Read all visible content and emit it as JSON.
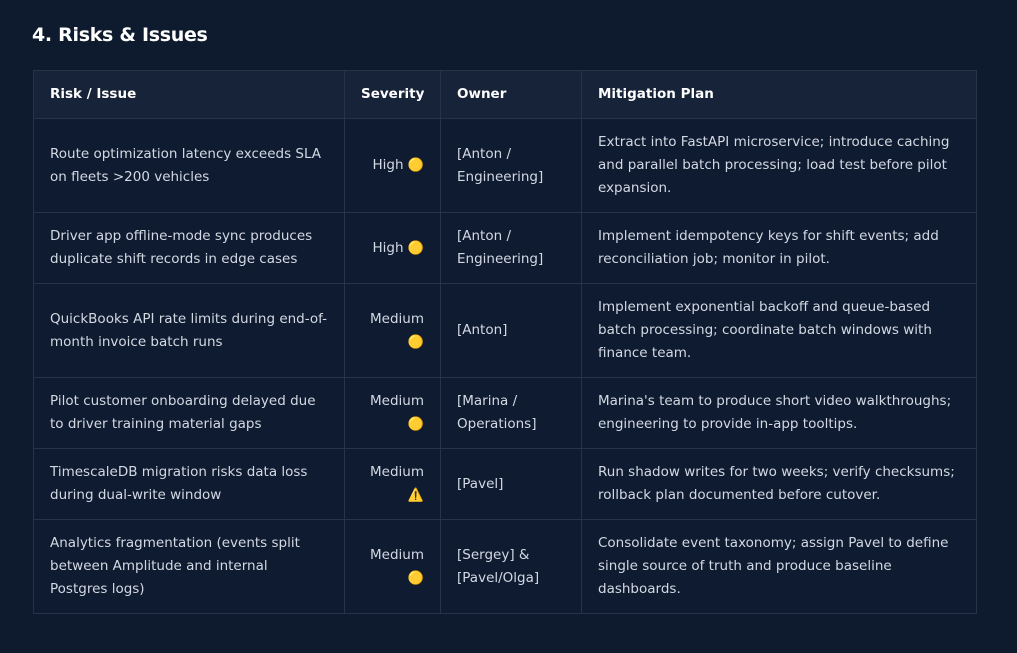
{
  "header": {
    "title": "4. Risks & Issues"
  },
  "table": {
    "columns": [
      "Risk / Issue",
      "Severity",
      "Owner",
      "Mitigation Plan"
    ],
    "rows": [
      {
        "risk": "Route optimization latency exceeds SLA on fleets >200 vehicles",
        "severity": "High",
        "icon": "🟡",
        "owner": "[Anton / Engineering]",
        "mitigation": "Extract into FastAPI microservice; introduce caching and parallel batch processing; load test before pilot expansion."
      },
      {
        "risk": "Driver app offline-mode sync produces duplicate shift records in edge cases",
        "severity": "High",
        "icon": "🟡",
        "owner": "[Anton / Engineering]",
        "mitigation": "Implement idempotency keys for shift events; add reconciliation job; monitor in pilot."
      },
      {
        "risk": "QuickBooks API rate limits during end-of-month invoice batch runs",
        "severity": "Medium",
        "icon": "🟡",
        "owner": "[Anton]",
        "mitigation": "Implement exponential backoff and queue-based batch processing; coordinate batch windows with finance team."
      },
      {
        "risk": "Pilot customer onboarding delayed due to driver training material gaps",
        "severity": "Medium",
        "icon": "🟡",
        "owner": "[Marina / Operations]",
        "mitigation": "Marina's team to produce short video walkthroughs; engineering to provide in-app tooltips."
      },
      {
        "risk": "TimescaleDB migration risks data loss during dual-write window",
        "severity": "Medium",
        "icon": "⚠️",
        "owner": "[Pavel]",
        "mitigation": "Run shadow writes for two weeks; verify checksums; rollback plan documented before cutover."
      },
      {
        "risk": "Analytics fragmentation (events split between Amplitude and internal Postgres logs)",
        "severity": "Medium",
        "icon": "🟡",
        "owner": "[Sergey] & [Pavel/Olga]",
        "mitigation": "Consolidate event taxonomy; assign Pavel to define single source of truth and produce baseline dashboards."
      }
    ]
  }
}
